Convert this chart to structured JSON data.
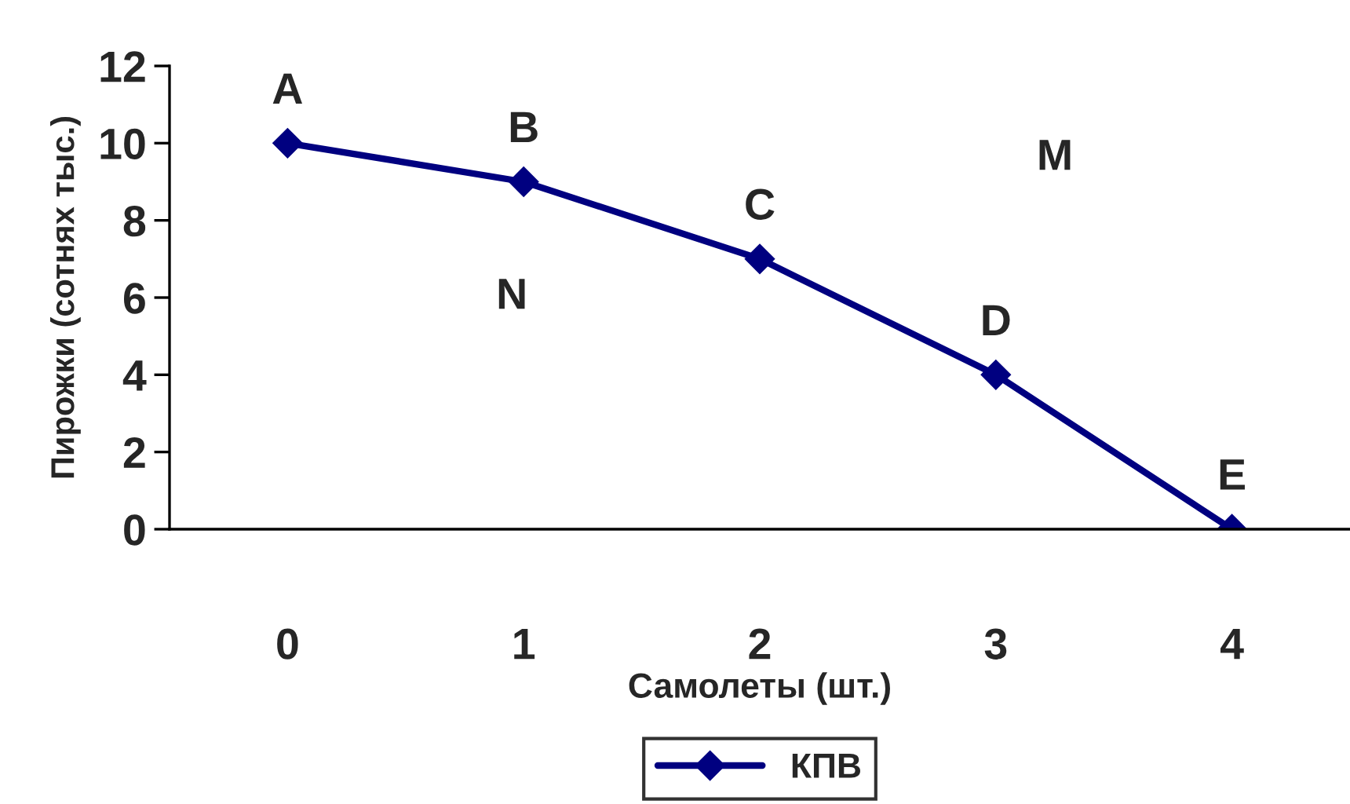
{
  "chart_data": {
    "type": "line",
    "xlabel": "Самолеты (шт.)",
    "ylabel": "Пирожки (сотнях тыс.)",
    "categories": [
      "0",
      "1",
      "2",
      "3",
      "4"
    ],
    "series": [
      {
        "name": "КПВ",
        "color": "#000080",
        "values": [
          10,
          9,
          7,
          4,
          0
        ]
      }
    ],
    "ylim": [
      0,
      12
    ],
    "yticks": [
      0,
      2,
      4,
      6,
      8,
      10,
      12
    ],
    "marker": "diamond",
    "line_style": "solid",
    "grid": false,
    "legend": "bottom",
    "annotations": [
      {
        "text": "A",
        "x": "0",
        "y": 10
      },
      {
        "text": "B",
        "x": "1",
        "y": 9
      },
      {
        "text": "C",
        "x": "2",
        "y": 7
      },
      {
        "text": "D",
        "x": "3",
        "y": 4
      },
      {
        "text": "E",
        "x": "4",
        "y": 0
      },
      "N",
      "M"
    ]
  }
}
